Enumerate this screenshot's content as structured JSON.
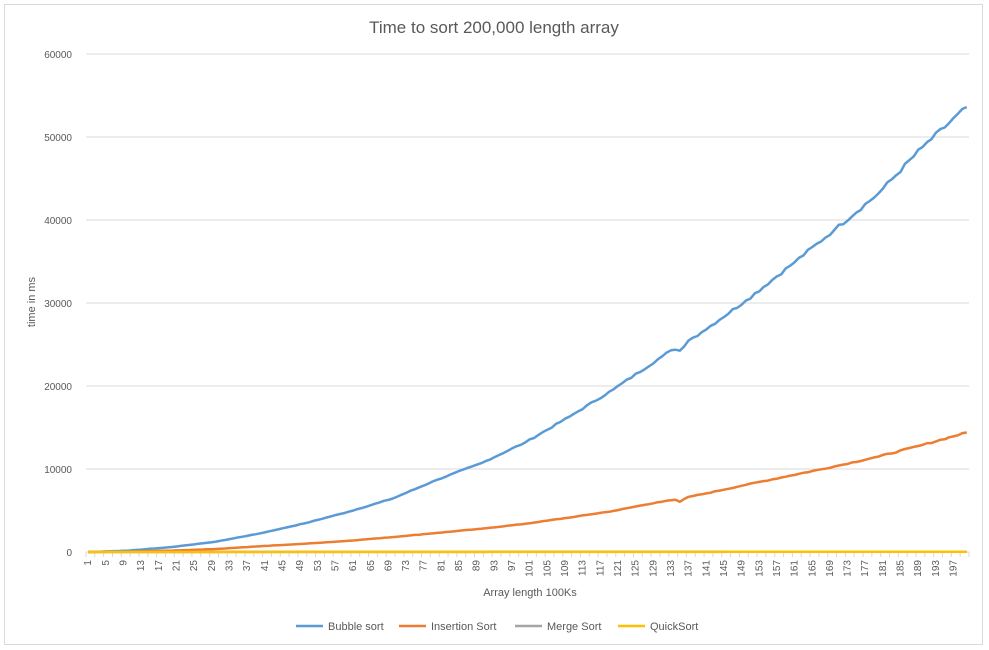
{
  "chart_data": {
    "type": "line",
    "title": "Time to sort 200,000 length array",
    "xlabel": "Array length 100Ks",
    "ylabel": "time in ms",
    "ylim": [
      0,
      60000
    ],
    "y_ticks": [
      0,
      10000,
      20000,
      30000,
      40000,
      50000,
      60000
    ],
    "x_range": [
      1,
      200
    ],
    "x_ticks": [
      1,
      5,
      9,
      13,
      17,
      21,
      25,
      29,
      33,
      37,
      41,
      45,
      49,
      53,
      57,
      61,
      65,
      69,
      73,
      77,
      81,
      85,
      89,
      93,
      97,
      101,
      105,
      109,
      113,
      117,
      121,
      125,
      129,
      133,
      137,
      141,
      145,
      149,
      153,
      157,
      161,
      165,
      169,
      173,
      177,
      181,
      185,
      189,
      193,
      197
    ],
    "grid": "horizontal",
    "legend_position": "bottom",
    "series": [
      {
        "name": "Bubble sort",
        "color": "#5b9bd5",
        "points": [
          [
            1,
            0
          ],
          [
            10,
            160
          ],
          [
            20,
            600
          ],
          [
            30,
            1250
          ],
          [
            40,
            2250
          ],
          [
            50,
            3450
          ],
          [
            60,
            4850
          ],
          [
            70,
            6450
          ],
          [
            80,
            8700
          ],
          [
            90,
            10700
          ],
          [
            100,
            13200
          ],
          [
            110,
            16300
          ],
          [
            120,
            19600
          ],
          [
            130,
            23200
          ],
          [
            133,
            24300
          ],
          [
            135,
            24250
          ],
          [
            137,
            25500
          ],
          [
            140,
            26500
          ],
          [
            150,
            30300
          ],
          [
            160,
            34500
          ],
          [
            170,
            38800
          ],
          [
            180,
            43200
          ],
          [
            190,
            48800
          ],
          [
            200,
            53600
          ]
        ]
      },
      {
        "name": "Insertion Sort",
        "color": "#ed7d31",
        "points": [
          [
            1,
            0
          ],
          [
            10,
            40
          ],
          [
            20,
            170
          ],
          [
            30,
            360
          ],
          [
            40,
            700
          ],
          [
            50,
            1000
          ],
          [
            60,
            1350
          ],
          [
            70,
            1800
          ],
          [
            80,
            2300
          ],
          [
            90,
            2800
          ],
          [
            100,
            3400
          ],
          [
            110,
            4150
          ],
          [
            120,
            4950
          ],
          [
            130,
            6000
          ],
          [
            134,
            6300
          ],
          [
            135,
            6050
          ],
          [
            137,
            6650
          ],
          [
            140,
            6950
          ],
          [
            150,
            8100
          ],
          [
            160,
            9200
          ],
          [
            170,
            10300
          ],
          [
            180,
            11500
          ],
          [
            190,
            12900
          ],
          [
            200,
            14400
          ]
        ]
      },
      {
        "name": "Merge Sort",
        "color": "#a5a5a5",
        "points": [
          [
            1,
            0
          ],
          [
            200,
            40
          ]
        ]
      },
      {
        "name": "QuickSort",
        "color": "#ffc000",
        "points": [
          [
            1,
            0
          ],
          [
            200,
            25
          ]
        ]
      }
    ]
  }
}
